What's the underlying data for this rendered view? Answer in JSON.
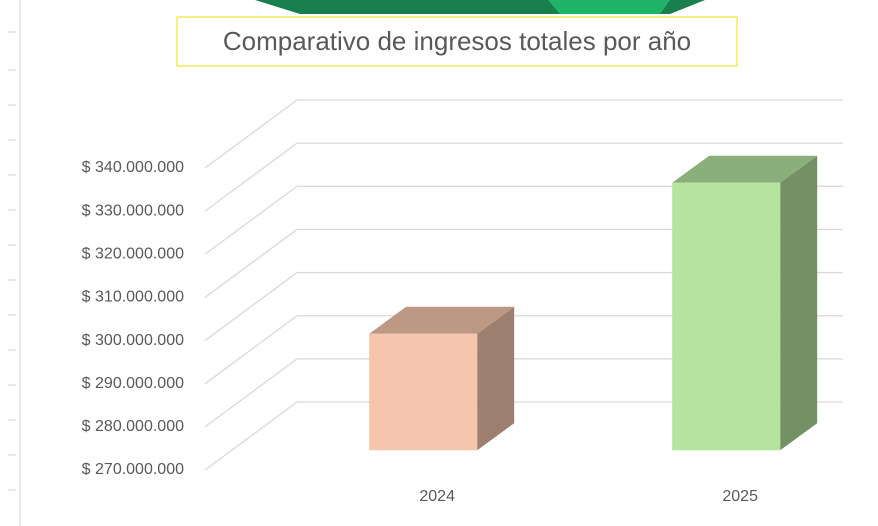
{
  "chart_data": {
    "type": "bar3d",
    "title": "Comparativo de ingresos totales por año",
    "categories": [
      "2024",
      "2025"
    ],
    "values": [
      297000000,
      332000000
    ],
    "colors": [
      "#f5c6ad",
      "#b5e3a0"
    ],
    "ylim": [
      270000000,
      340000000
    ],
    "yticks": [
      {
        "value": 270000000,
        "label": "$ 270.000.000"
      },
      {
        "value": 280000000,
        "label": "$ 280.000.000"
      },
      {
        "value": 290000000,
        "label": "$ 290.000.000"
      },
      {
        "value": 300000000,
        "label": "$ 300.000.000"
      },
      {
        "value": 310000000,
        "label": "$ 310.000.000"
      },
      {
        "value": 320000000,
        "label": "$ 320.000.000"
      },
      {
        "value": 330000000,
        "label": "$ 330.000.000"
      },
      {
        "value": 340000000,
        "label": "$ 340.000.000"
      }
    ],
    "grid": true
  }
}
